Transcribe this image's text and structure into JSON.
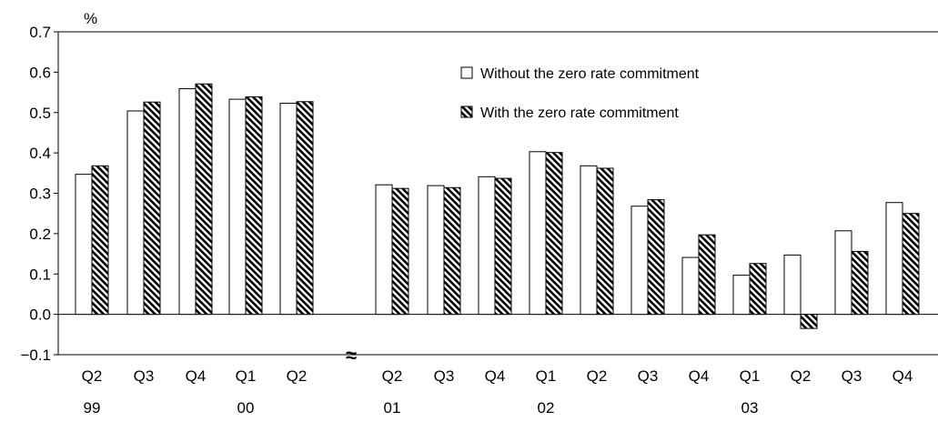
{
  "chart_data": {
    "type": "bar",
    "ylabel": "%",
    "ylim": [
      -0.1,
      0.7
    ],
    "yticks": [
      "0.7",
      "0.6",
      "0.5",
      "0.4",
      "0.3",
      "0.2",
      "0.1",
      "0.0",
      "−0.1"
    ],
    "ytick_values": [
      0.7,
      0.6,
      0.5,
      0.4,
      0.3,
      0.2,
      0.1,
      0.0,
      -0.1
    ],
    "legend_position": "top-right",
    "axis_break_symbol": "≈",
    "groups": [
      {
        "year": "99",
        "categories": [
          "Q2"
        ]
      },
      {
        "year": "00",
        "categories": [
          "Q3",
          "Q4",
          "Q1",
          "Q2"
        ]
      },
      {
        "year": "01",
        "categories": [
          "Q2"
        ]
      },
      {
        "year": "02",
        "categories": [
          "Q3",
          "Q4",
          "Q1",
          "Q2"
        ]
      },
      {
        "year": "03",
        "categories": [
          "Q3",
          "Q4",
          "Q1",
          "Q2",
          "Q3",
          "Q4"
        ]
      }
    ],
    "categories": [
      "Q2",
      "Q3",
      "Q4",
      "Q1",
      "Q2",
      "Q2",
      "Q3",
      "Q4",
      "Q1",
      "Q2",
      "Q3",
      "Q4",
      "Q1",
      "Q2",
      "Q3",
      "Q4"
    ],
    "year_labels": [
      {
        "label": "99",
        "index": 0
      },
      {
        "label": "00",
        "index": 3
      },
      {
        "label": "01",
        "index": 5
      },
      {
        "label": "02",
        "index": 8
      },
      {
        "label": "03",
        "index": 12
      }
    ],
    "series": [
      {
        "name": "Without the zero rate commitment",
        "pattern": "white",
        "values": [
          0.347,
          0.504,
          0.559,
          0.533,
          0.523,
          0.321,
          0.319,
          0.341,
          0.403,
          0.368,
          0.268,
          0.141,
          0.097,
          0.147,
          0.207,
          0.277
        ]
      },
      {
        "name": "With the zero rate commitment",
        "pattern": "hatched",
        "values": [
          0.368,
          0.526,
          0.571,
          0.539,
          0.527,
          0.312,
          0.314,
          0.337,
          0.401,
          0.362,
          0.284,
          0.197,
          0.126,
          -0.035,
          0.156,
          0.25
        ]
      }
    ]
  }
}
